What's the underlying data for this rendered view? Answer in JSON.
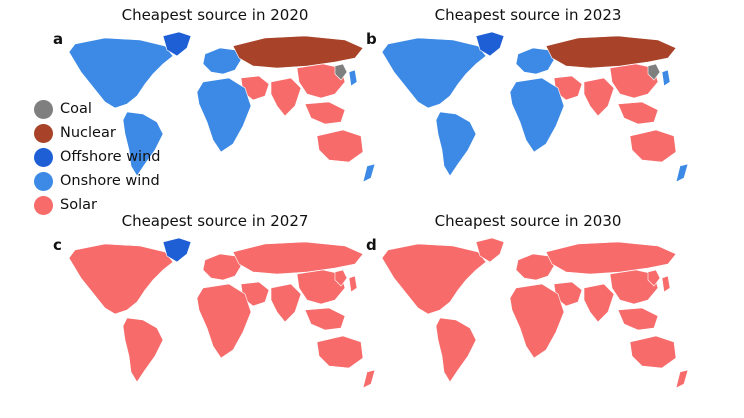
{
  "colors": {
    "Coal": "#7f7f7f",
    "Nuclear": "#a8432a",
    "Offshore wind": "#1f5fd6",
    "Onshore wind": "#3d8ae6",
    "Solar": "#f76b6b"
  },
  "legend": [
    {
      "label": "Coal",
      "color": "#7f7f7f"
    },
    {
      "label": "Nuclear",
      "color": "#a8432a"
    },
    {
      "label": "Offshore wind",
      "color": "#1f5fd6"
    },
    {
      "label": "Onshore wind",
      "color": "#3d8ae6"
    },
    {
      "label": "Solar",
      "color": "#f76b6b"
    }
  ],
  "panels": [
    {
      "letter": "a",
      "title": "Cheapest source in 2020",
      "regions": {
        "north_america": "Onshore wind",
        "greenland": "Offshore wind",
        "south_america": "Onshore wind",
        "europe": "Onshore wind",
        "russia": "Nuclear",
        "east_asia": "Solar",
        "middle_east": "Solar",
        "south_asia": "Solar",
        "africa": "Onshore wind",
        "southeast_asia": "Solar",
        "australia": "Solar",
        "japan": "Onshore wind",
        "new_zealand": "Onshore wind",
        "mongolia": "Coal"
      }
    },
    {
      "letter": "b",
      "title": "Cheapest source in 2023",
      "regions": {
        "north_america": "Onshore wind",
        "greenland": "Offshore wind",
        "south_america": "Onshore wind",
        "europe": "Onshore wind",
        "russia": "Nuclear",
        "east_asia": "Solar",
        "middle_east": "Solar",
        "south_asia": "Solar",
        "africa": "Onshore wind",
        "southeast_asia": "Solar",
        "australia": "Solar",
        "japan": "Onshore wind",
        "new_zealand": "Onshore wind",
        "mongolia": "Coal"
      }
    },
    {
      "letter": "c",
      "title": "Cheapest source in 2027",
      "regions": {
        "north_america": "Solar",
        "greenland": "Offshore wind",
        "south_america": "Solar",
        "europe": "Solar",
        "russia": "Solar",
        "east_asia": "Solar",
        "middle_east": "Solar",
        "south_asia": "Solar",
        "africa": "Solar",
        "southeast_asia": "Solar",
        "australia": "Solar",
        "japan": "Solar",
        "new_zealand": "Solar",
        "mongolia": "Solar"
      }
    },
    {
      "letter": "d",
      "title": "Cheapest source in 2030",
      "regions": {
        "north_america": "Solar",
        "greenland": "Solar",
        "south_america": "Solar",
        "europe": "Solar",
        "russia": "Solar",
        "east_asia": "Solar",
        "middle_east": "Solar",
        "south_asia": "Solar",
        "africa": "Solar",
        "southeast_asia": "Solar",
        "australia": "Solar",
        "japan": "Solar",
        "new_zealand": "Solar",
        "mongolia": "Solar"
      }
    }
  ]
}
